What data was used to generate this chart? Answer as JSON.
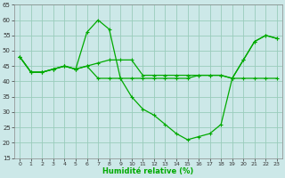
{
  "xlabel": "Humidité relative (%)",
  "background_color": "#cce8e8",
  "grid_color": "#99ccbb",
  "line_color": "#00aa00",
  "xlim": [
    -0.5,
    23.5
  ],
  "ylim": [
    15,
    65
  ],
  "xticks": [
    0,
    1,
    2,
    3,
    4,
    5,
    6,
    7,
    8,
    9,
    10,
    11,
    12,
    13,
    14,
    15,
    16,
    17,
    18,
    19,
    20,
    21,
    22,
    23
  ],
  "yticks": [
    15,
    20,
    25,
    30,
    35,
    40,
    45,
    50,
    55,
    60,
    65
  ],
  "curve1": [
    48,
    43,
    43,
    44,
    45,
    44,
    56,
    60,
    57,
    41,
    35,
    31,
    29,
    26,
    23,
    21,
    22,
    23,
    26,
    41,
    47,
    53,
    55,
    54
  ],
  "curve2": [
    48,
    43,
    43,
    44,
    45,
    44,
    45,
    46,
    47,
    47,
    47,
    42,
    42,
    42,
    42,
    42,
    42,
    42,
    42,
    41,
    47,
    53,
    55,
    54
  ],
  "curve3": [
    48,
    43,
    43,
    44,
    45,
    44,
    45,
    41,
    41,
    41,
    41,
    41,
    41,
    41,
    41,
    41,
    42,
    42,
    42,
    41,
    41,
    41,
    41,
    41
  ]
}
